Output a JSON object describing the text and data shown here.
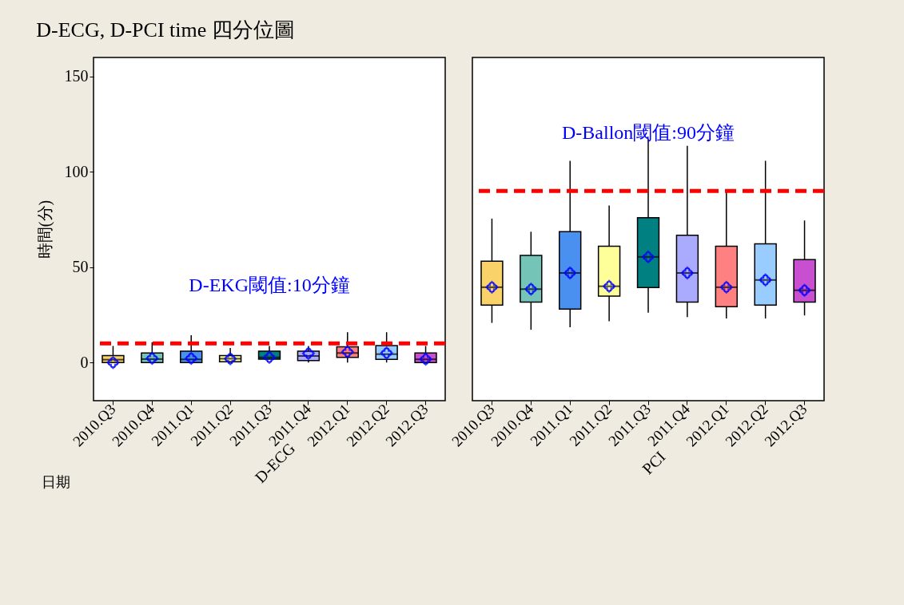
{
  "chart_data": [
    {
      "type": "box",
      "title": "D-ECG, D-PCI time 四分位圖",
      "ylabel": "時間(分)",
      "xlabel": "D-ECG",
      "annotations": [
        "日期"
      ],
      "categories": [
        "2010.Q3",
        "2010.Q4",
        "2011.Q1",
        "2011.Q2",
        "2011.Q3",
        "2011.Q4",
        "2012.Q1",
        "2012.Q2",
        "2012.Q3"
      ],
      "colors": [
        "#f9d36a",
        "#74c4b8",
        "#4a90f0",
        "#ffff99",
        "#008080",
        "#aaaaff",
        "#ff8080",
        "#99ccff",
        "#c850d0"
      ],
      "boxes": [
        {
          "low": 0,
          "q1": 0,
          "median": 1.5,
          "q3": 3.7,
          "high": 8.7,
          "mean": 0
        },
        {
          "low": 0,
          "q1": 0,
          "median": 1.8,
          "q3": 5,
          "high": 10.6,
          "mean": 2.2
        },
        {
          "low": 0,
          "q1": 0,
          "median": 1.7,
          "q3": 6,
          "high": 14.3,
          "mean": 2.2
        },
        {
          "low": 0.4,
          "q1": 0.4,
          "median": 2,
          "q3": 3.7,
          "high": 7.6,
          "mean": 2
        },
        {
          "low": 1.8,
          "q1": 1.8,
          "median": 2.7,
          "q3": 6,
          "high": 8.7,
          "mean": 2.7
        },
        {
          "low": 0,
          "q1": 1,
          "median": 3.4,
          "q3": 6,
          "high": 8.7,
          "mean": 4.8
        },
        {
          "low": 0,
          "q1": 2.7,
          "median": 5,
          "q3": 8.3,
          "high": 15.9,
          "mean": 5.6
        },
        {
          "low": 0,
          "q1": 1.7,
          "median": 4.4,
          "q3": 8.9,
          "high": 15.9,
          "mean": 5
        },
        {
          "low": 0,
          "q1": 0,
          "median": 1.7,
          "q3": 5,
          "high": 8.7,
          "mean": 1.8
        }
      ],
      "ylim": [
        -20,
        160
      ],
      "yticks": [
        0,
        50,
        100,
        150
      ],
      "marker": "diamond",
      "grid": false,
      "ref_lines": [
        {
          "axis": "y",
          "value": 10,
          "label": "D-EKG閾值:10分鐘",
          "color": "#ff0000",
          "line_style": "dashed"
        }
      ]
    },
    {
      "type": "box",
      "xlabel": "PCI",
      "tick_labels": "x",
      "categories": [
        "2010.Q3",
        "2010.Q4",
        "2011.Q1",
        "2011.Q2",
        "2011.Q3",
        "2011.Q4",
        "2012.Q1",
        "2012.Q2",
        "2012.Q3"
      ],
      "colors": [
        "#f9d36a",
        "#74c4b8",
        "#4a90f0",
        "#ffff99",
        "#008080",
        "#aaaaff",
        "#ff8080",
        "#99ccff",
        "#c850d0"
      ],
      "boxes": [
        {
          "low": 20.8,
          "q1": 30.1,
          "median": 39.5,
          "q3": 53.2,
          "high": 75.5,
          "mean": 39.5
        },
        {
          "low": 17.2,
          "q1": 31.7,
          "median": 38.5,
          "q3": 56.2,
          "high": 68.6,
          "mean": 38.5
        },
        {
          "low": 18.5,
          "q1": 28,
          "median": 47,
          "q3": 68.6,
          "high": 105.8,
          "mean": 47
        },
        {
          "low": 21.6,
          "q1": 34.8,
          "median": 40,
          "q3": 61,
          "high": 82.3,
          "mean": 40
        },
        {
          "low": 26.1,
          "q1": 39.3,
          "median": 55.4,
          "q3": 76,
          "high": 117.4,
          "mean": 55.4
        },
        {
          "low": 23.8,
          "q1": 31.7,
          "median": 47,
          "q3": 66.8,
          "high": 113.6,
          "mean": 47
        },
        {
          "low": 23.1,
          "q1": 29.3,
          "median": 39.5,
          "q3": 61,
          "high": 89.4,
          "mean": 39.5
        },
        {
          "low": 23.1,
          "q1": 30.1,
          "median": 43.3,
          "q3": 62.3,
          "high": 105.8,
          "mean": 43.3
        },
        {
          "low": 24.7,
          "q1": 31.7,
          "median": 37.9,
          "q3": 54,
          "high": 74.5,
          "mean": 37.9
        }
      ],
      "ylim": [
        -20,
        160
      ],
      "yticks": [
        0,
        50,
        100,
        150
      ],
      "marker": "diamond",
      "grid": false,
      "ref_lines": [
        {
          "axis": "y",
          "value": 90,
          "label": "D-Ballon閾值:90分鐘",
          "color": "#ff0000",
          "line_style": "dashed"
        }
      ]
    }
  ]
}
